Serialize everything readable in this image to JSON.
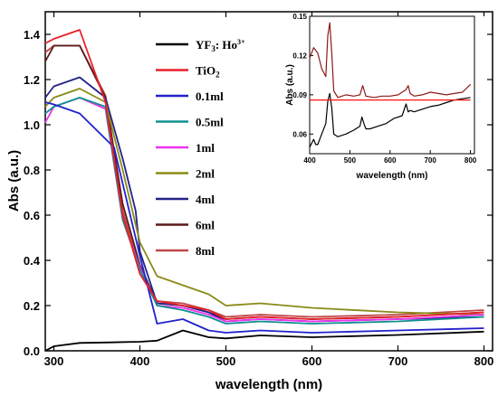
{
  "chart_data": [
    {
      "type": "line",
      "xlabel": "wavelength (nm)",
      "ylabel": "Abs (a.u.)",
      "xlim": [
        290,
        810
      ],
      "ylim": [
        0.0,
        1.5
      ],
      "xticks": [
        300,
        400,
        500,
        600,
        700,
        800
      ],
      "yticks": [
        0.0,
        0.2,
        0.4,
        0.6,
        0.8,
        1.0,
        1.2,
        1.4
      ],
      "legend_position": "top-center",
      "series": [
        {
          "name": "YF3: Ho3+",
          "name_main": "YF",
          "name_sub": "3",
          "name_rest": ": Ho",
          "name_sup": "3+",
          "color": "#000000",
          "x": [
            290,
            300,
            330,
            360,
            400,
            420,
            450,
            480,
            500,
            540,
            600,
            700,
            800
          ],
          "y": [
            0.0,
            0.02,
            0.035,
            0.037,
            0.04,
            0.045,
            0.09,
            0.06,
            0.055,
            0.068,
            0.06,
            0.07,
            0.085
          ]
        },
        {
          "name": "TiO2",
          "name_main": "TiO",
          "name_sub": "2",
          "color": "#e8202a",
          "x": [
            290,
            300,
            330,
            360,
            380,
            400,
            420,
            450,
            480,
            500,
            540,
            600,
            700,
            800
          ],
          "y": [
            1.36,
            1.38,
            1.42,
            1.1,
            0.6,
            0.34,
            0.22,
            0.2,
            0.18,
            0.14,
            0.15,
            0.14,
            0.15,
            0.17
          ]
        },
        {
          "name": "0.1ml",
          "color": "#2222cc",
          "x": [
            290,
            300,
            330,
            370,
            390,
            400,
            420,
            450,
            480,
            500,
            540,
            600,
            700,
            800
          ],
          "y": [
            1.1,
            1.09,
            1.05,
            0.9,
            0.58,
            0.42,
            0.12,
            0.14,
            0.09,
            0.08,
            0.09,
            0.08,
            0.09,
            0.1
          ]
        },
        {
          "name": "0.5ml",
          "color": "#109090",
          "x": [
            290,
            300,
            330,
            360,
            380,
            400,
            420,
            450,
            480,
            500,
            540,
            600,
            700,
            800
          ],
          "y": [
            1.05,
            1.08,
            1.12,
            1.08,
            0.58,
            0.36,
            0.2,
            0.18,
            0.15,
            0.12,
            0.13,
            0.12,
            0.13,
            0.15
          ]
        },
        {
          "name": "1ml",
          "color": "#ee33ee",
          "x": [
            290,
            300,
            330,
            360,
            380,
            400,
            420,
            450,
            480,
            500,
            540,
            600,
            700,
            800
          ],
          "y": [
            1.01,
            1.08,
            1.12,
            1.07,
            0.58,
            0.37,
            0.2,
            0.19,
            0.16,
            0.13,
            0.14,
            0.13,
            0.14,
            0.16
          ]
        },
        {
          "name": "2ml",
          "color": "#8a8a18",
          "x": [
            290,
            300,
            330,
            360,
            380,
            400,
            420,
            450,
            480,
            500,
            540,
            600,
            700,
            800
          ],
          "y": [
            1.08,
            1.12,
            1.16,
            1.1,
            0.8,
            0.48,
            0.33,
            0.29,
            0.25,
            0.2,
            0.21,
            0.19,
            0.17,
            0.16
          ]
        },
        {
          "name": "4ml",
          "color": "#222288",
          "x": [
            290,
            300,
            330,
            360,
            380,
            395,
            400,
            420,
            450,
            480,
            500,
            540,
            600,
            700,
            800
          ],
          "y": [
            1.12,
            1.17,
            1.21,
            1.12,
            0.85,
            0.62,
            0.44,
            0.21,
            0.2,
            0.17,
            0.13,
            0.14,
            0.13,
            0.14,
            0.15
          ]
        },
        {
          "name": "6ml",
          "color": "#5a1a1a",
          "x": [
            290,
            300,
            330,
            360,
            380,
            400,
            420,
            450,
            480,
            500,
            540,
            600,
            700,
            800
          ],
          "y": [
            1.28,
            1.35,
            1.35,
            1.12,
            0.65,
            0.38,
            0.21,
            0.2,
            0.17,
            0.14,
            0.15,
            0.14,
            0.15,
            0.17
          ]
        },
        {
          "name": "8ml",
          "color": "#c04848",
          "x": [
            290,
            300,
            330,
            360,
            380,
            400,
            420,
            450,
            480,
            500,
            540,
            600,
            700,
            800
          ],
          "y": [
            1.32,
            1.35,
            1.35,
            1.13,
            0.62,
            0.36,
            0.22,
            0.21,
            0.18,
            0.15,
            0.16,
            0.15,
            0.16,
            0.18
          ]
        }
      ]
    },
    {
      "type": "line",
      "position": "inset-top-right",
      "xlabel": "wavelength (nm)",
      "ylabel": "Abs (a.u.)",
      "xlim": [
        400,
        810
      ],
      "ylim": [
        0.045,
        0.15
      ],
      "xticks": [
        400,
        500,
        600,
        700,
        800
      ],
      "yticks": [
        0.06,
        0.09,
        0.12,
        0.15
      ],
      "series": [
        {
          "color": "#000000",
          "x": [
            400,
            410,
            415,
            420,
            430,
            440,
            445,
            450,
            455,
            460,
            470,
            490,
            510,
            525,
            530,
            535,
            540,
            550,
            570,
            590,
            610,
            630,
            640,
            645,
            650,
            660,
            680,
            700,
            720,
            740,
            760,
            780,
            800
          ],
          "y": [
            0.05,
            0.056,
            0.052,
            0.052,
            0.06,
            0.068,
            0.085,
            0.091,
            0.08,
            0.06,
            0.058,
            0.06,
            0.063,
            0.066,
            0.073,
            0.068,
            0.064,
            0.064,
            0.066,
            0.068,
            0.072,
            0.074,
            0.083,
            0.077,
            0.078,
            0.077,
            0.079,
            0.081,
            0.082,
            0.084,
            0.086,
            0.087,
            0.088
          ]
        },
        {
          "color": "#8b1a1a",
          "x": [
            400,
            410,
            420,
            430,
            440,
            445,
            450,
            455,
            460,
            470,
            490,
            510,
            525,
            532,
            540,
            560,
            580,
            600,
            620,
            640,
            645,
            650,
            660,
            680,
            700,
            720,
            740,
            760,
            780,
            800
          ],
          "y": [
            0.118,
            0.126,
            0.122,
            0.11,
            0.104,
            0.135,
            0.145,
            0.122,
            0.093,
            0.088,
            0.09,
            0.089,
            0.09,
            0.097,
            0.089,
            0.088,
            0.089,
            0.089,
            0.09,
            0.094,
            0.097,
            0.091,
            0.089,
            0.09,
            0.092,
            0.091,
            0.09,
            0.091,
            0.092,
            0.098
          ]
        },
        {
          "color": "#ff1010",
          "x": [
            400,
            800
          ],
          "y": [
            0.086,
            0.086
          ]
        }
      ]
    }
  ]
}
